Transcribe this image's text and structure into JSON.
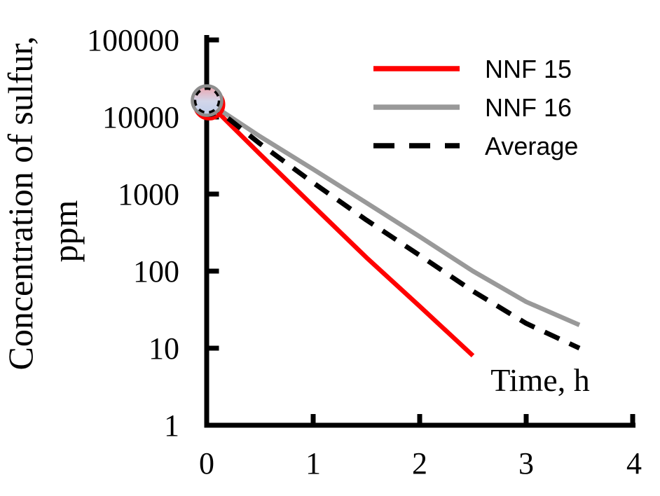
{
  "chart_data": {
    "type": "line",
    "title": "",
    "xlabel": "Time, h",
    "ylabel_line1": "Concentration of sulfur,",
    "ylabel_line2": "ppm",
    "x_ticks": [
      0,
      1,
      2,
      3,
      4
    ],
    "y_ticks": [
      1,
      10,
      100,
      1000,
      10000,
      100000
    ],
    "xlim": [
      0,
      4
    ],
    "ylim": [
      1,
      100000
    ],
    "y_scale": "log",
    "grid": false,
    "legend_position": "top-right",
    "start_marker": {
      "x": 0,
      "value": 16000
    },
    "series": [
      {
        "name": "NNF 15",
        "color": "#ff0000",
        "style": "solid",
        "x": [
          0,
          0.5,
          1,
          1.5,
          2,
          2.5
        ],
        "values": [
          16000,
          3300,
          700,
          150,
          35,
          8
        ]
      },
      {
        "name": "NNF 16",
        "color": "#999999",
        "style": "solid",
        "x": [
          0,
          0.5,
          1,
          1.5,
          2,
          2.5,
          3,
          3.5
        ],
        "values": [
          16000,
          5600,
          2100,
          770,
          280,
          100,
          40,
          20
        ]
      },
      {
        "name": "Average",
        "color": "#000000",
        "style": "dashed",
        "x": [
          0,
          0.5,
          1,
          1.5,
          2,
          2.5,
          3,
          3.5
        ],
        "values": [
          16000,
          4500,
          1400,
          460,
          160,
          55,
          21,
          10
        ]
      }
    ]
  },
  "colors": {
    "axis": "#000000",
    "text": "#000000",
    "background": "#ffffff",
    "marker_gradient_top": "#efa3ac",
    "marker_gradient_mid": "#d2d6ea",
    "marker_gradient_bottom": "#bfcdea",
    "marker_ring": "#8d8d8d",
    "marker_dash": "#000000",
    "marker_red_edge": "#ff0000"
  }
}
